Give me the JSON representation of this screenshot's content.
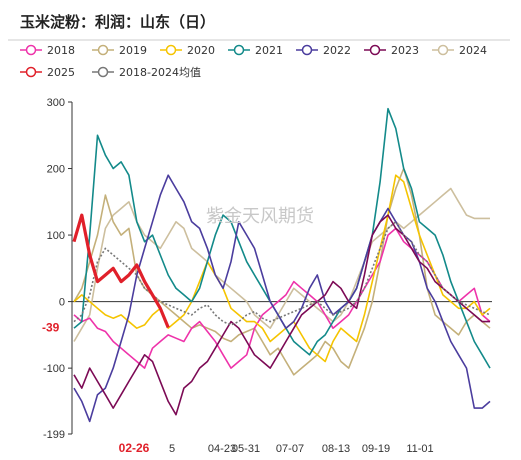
{
  "page": {
    "title": "玉米淀粉：利润：山东（日）",
    "watermark": "紫金天风期货"
  },
  "chart_data": {
    "type": "line",
    "title": "玉米淀粉：利润：山东（日）",
    "xlabel": "",
    "ylabel": "",
    "ylim": [
      -199,
      300
    ],
    "y_ticks": [
      -199,
      -100,
      0,
      100,
      200,
      300
    ],
    "x_tick_labels": [
      "02-26",
      "5",
      "04-23",
      "05-31",
      "07-07",
      "08-13",
      "09-19",
      "11-01"
    ],
    "highlight_x_label": "02-26",
    "latest_value_label": "-39",
    "grid": false,
    "legend_position": "top",
    "colors": {
      "2018": "#ee33aa",
      "2019": "#c4b07a",
      "2020": "#f5c400",
      "2021": "#138a8a",
      "2022": "#4b3d9e",
      "2023": "#7c0a55",
      "2024": "#cdbf9e",
      "2025": "#e0202a",
      "2018-2024均值": "#777777"
    },
    "series": [
      {
        "name": "2018",
        "values": [
          -20,
          -30,
          -25,
          -40,
          -45,
          -60,
          -70,
          -80,
          -90,
          -100,
          -70,
          -60,
          -50,
          -55,
          -60,
          -40,
          -30,
          -45,
          -60,
          -80,
          -100,
          -90,
          -80,
          -40,
          -20,
          -10,
          0,
          10,
          30,
          20,
          10,
          0,
          -20,
          -40,
          -30,
          -20,
          0,
          20,
          40,
          60,
          100,
          110,
          90,
          80,
          70,
          60,
          40,
          20,
          10,
          0,
          10,
          20,
          -20,
          -30
        ]
      },
      {
        "name": "2019",
        "values": [
          0,
          20,
          60,
          100,
          160,
          120,
          100,
          110,
          40,
          20,
          10,
          0,
          -10,
          -20,
          -30,
          -40,
          -35,
          -40,
          -45,
          -55,
          -60,
          -50,
          -45,
          -40,
          -60,
          -80,
          -70,
          -90,
          -110,
          -100,
          -90,
          -80,
          -60,
          -70,
          -90,
          -100,
          -70,
          -40,
          0,
          60,
          130,
          170,
          200,
          160,
          100,
          20,
          -20,
          -30,
          -40,
          -50,
          -30,
          -20,
          -30,
          -40
        ]
      },
      {
        "name": "2020",
        "values": [
          0,
          10,
          0,
          -10,
          -20,
          -25,
          -20,
          -30,
          -40,
          -35,
          -20,
          -10,
          -40,
          -30,
          -20,
          0,
          30,
          60,
          40,
          20,
          -10,
          -20,
          -30,
          -30,
          -40,
          -60,
          -50,
          -40,
          -30,
          -50,
          -70,
          -80,
          -90,
          -60,
          -40,
          -50,
          -60,
          -20,
          30,
          80,
          130,
          190,
          180,
          140,
          100,
          70,
          40,
          10,
          0,
          -10,
          -10,
          0,
          -20,
          -10
        ]
      },
      {
        "name": "2021",
        "values": [
          -40,
          -30,
          100,
          250,
          220,
          200,
          210,
          190,
          120,
          90,
          100,
          70,
          40,
          20,
          10,
          0,
          20,
          60,
          100,
          130,
          120,
          90,
          60,
          40,
          20,
          0,
          -20,
          -40,
          -60,
          -70,
          -80,
          -60,
          -50,
          -30,
          -10,
          0,
          20,
          60,
          100,
          180,
          290,
          260,
          200,
          170,
          120,
          110,
          100,
          70,
          30,
          0,
          -30,
          -60,
          -80,
          -100
        ]
      },
      {
        "name": "2022",
        "values": [
          -130,
          -150,
          -180,
          -140,
          -130,
          -100,
          -60,
          -20,
          40,
          80,
          120,
          160,
          190,
          170,
          150,
          120,
          110,
          80,
          40,
          20,
          60,
          120,
          100,
          80,
          40,
          0,
          -20,
          -40,
          -30,
          -10,
          20,
          40,
          0,
          -20,
          -10,
          0,
          20,
          60,
          100,
          120,
          140,
          120,
          100,
          90,
          60,
          20,
          0,
          -30,
          -60,
          -80,
          -100,
          -160,
          -160,
          -150
        ]
      },
      {
        "name": "2023",
        "values": [
          -110,
          -130,
          -100,
          -120,
          -140,
          -160,
          -140,
          -120,
          -100,
          -80,
          -90,
          -120,
          -150,
          -170,
          -130,
          -120,
          -100,
          -90,
          -70,
          -50,
          -30,
          -40,
          -60,
          -80,
          -90,
          -100,
          -80,
          -60,
          -40,
          -20,
          -10,
          0,
          10,
          30,
          20,
          0,
          -10,
          40,
          100,
          120,
          130,
          110,
          100,
          80,
          60,
          50,
          30,
          20,
          10,
          0,
          -10,
          -20,
          -30,
          -30
        ]
      },
      {
        "name": "2024",
        "values": [
          -60,
          -40,
          -20,
          50,
          110,
          130,
          140,
          150,
          120,
          100,
          90,
          80,
          100,
          120,
          110,
          80,
          70,
          60,
          40,
          30,
          20,
          10,
          0,
          -20,
          -30,
          -40,
          -20,
          0,
          20,
          10,
          0,
          -10,
          -20,
          -30,
          -20,
          0,
          30,
          60,
          90,
          100,
          110,
          120,
          110,
          120,
          130,
          140,
          150,
          160,
          170,
          150,
          130,
          125,
          125,
          125
        ]
      },
      {
        "name": "2025",
        "values": [
          90,
          130,
          70,
          30,
          40,
          50,
          30,
          40,
          55,
          30,
          10,
          -10,
          -39
        ]
      },
      {
        "name": "2018-2024均值",
        "values": [
          -30,
          -20,
          10,
          60,
          80,
          70,
          60,
          50,
          40,
          20,
          10,
          0,
          -5,
          -10,
          -15,
          -20,
          -10,
          -5,
          -20,
          -30,
          -35,
          -30,
          -20,
          -15,
          -25,
          -30,
          -25,
          -20,
          -15,
          -10,
          -5,
          0,
          -10,
          -20,
          -15,
          -10,
          0,
          20,
          50,
          80,
          110,
          120,
          100,
          90,
          70,
          60,
          40,
          20,
          10,
          0,
          -5,
          -10,
          -15,
          -20
        ]
      }
    ]
  }
}
